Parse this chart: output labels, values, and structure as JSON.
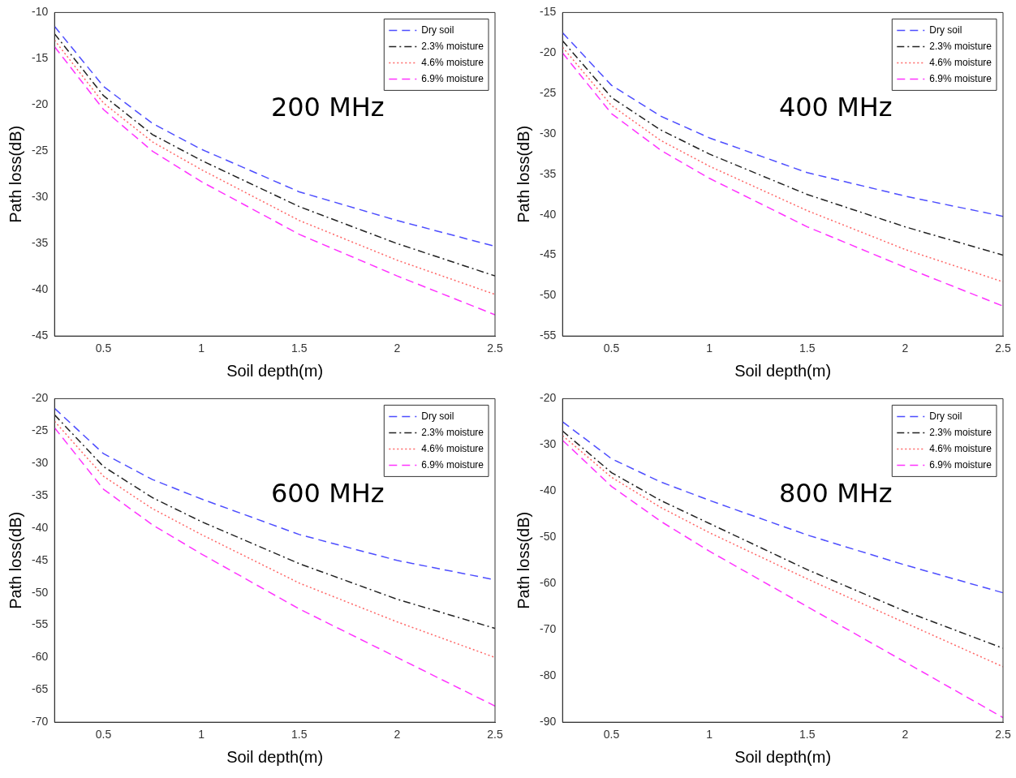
{
  "chart_data": [
    {
      "type": "line",
      "xlabel": "Soil depth(m)",
      "ylabel": "Path loss(dB)",
      "annotations": [
        "200 MHz"
      ],
      "x": [
        0.25,
        0.5,
        0.75,
        1,
        1.5,
        2,
        2.5
      ],
      "xlim": [
        0.25,
        2.5
      ],
      "xticks": [
        0.5,
        1,
        1.5,
        2,
        2.5
      ],
      "ylim": [
        -45,
        -10
      ],
      "yticks": [
        -45,
        -40,
        -35,
        -30,
        -25,
        -20,
        -15,
        -10
      ],
      "grid": false,
      "legend": "top right",
      "marker": "none",
      "series": [
        {
          "name": "Dry soil",
          "color": "#4d4dff",
          "line_style": "dashed",
          "values": [
            -11.5,
            -18,
            -22,
            -24.8,
            -29.4,
            -32.5,
            -35.3
          ]
        },
        {
          "name": "2.3% moisture",
          "color": "#222222",
          "line_style": "dashdot",
          "values": [
            -12.3,
            -19,
            -23.2,
            -26,
            -31,
            -35,
            -38.5
          ]
        },
        {
          "name": "4.6% moisture",
          "color": "#ff6666",
          "line_style": "dotted",
          "values": [
            -13,
            -19.8,
            -24,
            -27,
            -32.5,
            -36.8,
            -40.5
          ]
        },
        {
          "name": "6.9% moisture",
          "color": "#ff33ff",
          "line_style": "dashed",
          "values": [
            -13.7,
            -20.5,
            -25,
            -28.3,
            -34,
            -38.5,
            -42.7
          ]
        }
      ]
    },
    {
      "type": "line",
      "xlabel": "Soil depth(m)",
      "ylabel": "Path loss(dB)",
      "annotations": [
        "400 MHz"
      ],
      "x": [
        0.25,
        0.5,
        0.75,
        1,
        1.5,
        2,
        2.5
      ],
      "xlim": [
        0.25,
        2.5
      ],
      "xticks": [
        0.5,
        1,
        1.5,
        2,
        2.5
      ],
      "ylim": [
        -55,
        -15
      ],
      "yticks": [
        -55,
        -50,
        -45,
        -40,
        -35,
        -30,
        -25,
        -20,
        -15
      ],
      "grid": false,
      "legend": "top right",
      "marker": "none",
      "series": [
        {
          "name": "Dry soil",
          "color": "#4d4dff",
          "line_style": "dashed",
          "values": [
            -17.5,
            -24,
            -27.8,
            -30.5,
            -34.8,
            -37.7,
            -40.2
          ]
        },
        {
          "name": "2.3% moisture",
          "color": "#222222",
          "line_style": "dashdot",
          "values": [
            -18.5,
            -25.5,
            -29.5,
            -32.5,
            -37.5,
            -41.5,
            -45
          ]
        },
        {
          "name": "4.6% moisture",
          "color": "#ff6666",
          "line_style": "dotted",
          "values": [
            -19.3,
            -26.5,
            -30.8,
            -34,
            -39.5,
            -44.3,
            -48.3
          ]
        },
        {
          "name": "6.9% moisture",
          "color": "#ff33ff",
          "line_style": "dashed",
          "values": [
            -20,
            -27.5,
            -32,
            -35.5,
            -41.5,
            -46.5,
            -51.3
          ]
        }
      ]
    },
    {
      "type": "line",
      "xlabel": "Soil depth(m)",
      "ylabel": "Path loss(dB)",
      "annotations": [
        "600 MHz"
      ],
      "x": [
        0.25,
        0.5,
        0.75,
        1,
        1.5,
        2,
        2.5
      ],
      "xlim": [
        0.25,
        2.5
      ],
      "xticks": [
        0.5,
        1,
        1.5,
        2,
        2.5
      ],
      "ylim": [
        -70,
        -20
      ],
      "yticks": [
        -70,
        -65,
        -60,
        -55,
        -50,
        -45,
        -40,
        -35,
        -30,
        -25,
        -20
      ],
      "grid": false,
      "legend": "top right",
      "marker": "none",
      "series": [
        {
          "name": "Dry soil",
          "color": "#4d4dff",
          "line_style": "dashed",
          "values": [
            -21.5,
            -28.5,
            -32.5,
            -35.5,
            -41,
            -45,
            -48
          ]
        },
        {
          "name": "2.3% moisture",
          "color": "#222222",
          "line_style": "dashdot",
          "values": [
            -22.5,
            -30.5,
            -35.3,
            -39,
            -45.5,
            -51,
            -55.5
          ]
        },
        {
          "name": "4.6% moisture",
          "color": "#ff6666",
          "line_style": "dotted",
          "values": [
            -23.5,
            -32,
            -37,
            -41,
            -48.5,
            -54.5,
            -60
          ]
        },
        {
          "name": "6.9% moisture",
          "color": "#ff33ff",
          "line_style": "dashed",
          "values": [
            -24.5,
            -34,
            -39.5,
            -44,
            -52.5,
            -60,
            -67.5
          ]
        }
      ]
    },
    {
      "type": "line",
      "xlabel": "Soil depth(m)",
      "ylabel": "Path loss(dB)",
      "annotations": [
        "800 MHz"
      ],
      "x": [
        0.25,
        0.5,
        0.75,
        1,
        1.5,
        2,
        2.5
      ],
      "xlim": [
        0.25,
        2.5
      ],
      "xticks": [
        0.5,
        1,
        1.5,
        2,
        2.5
      ],
      "ylim": [
        -90,
        -20
      ],
      "yticks": [
        -90,
        -80,
        -70,
        -60,
        -50,
        -40,
        -30,
        -20
      ],
      "grid": false,
      "legend": "top right",
      "marker": "none",
      "series": [
        {
          "name": "Dry soil",
          "color": "#4d4dff",
          "line_style": "dashed",
          "values": [
            -25,
            -33,
            -38,
            -42,
            -49.5,
            -56,
            -62
          ]
        },
        {
          "name": "2.3% moisture",
          "color": "#222222",
          "line_style": "dashdot",
          "values": [
            -27,
            -36,
            -42,
            -47,
            -57,
            -66,
            -74
          ]
        },
        {
          "name": "4.6% moisture",
          "color": "#ff6666",
          "line_style": "dotted",
          "values": [
            -28,
            -37,
            -43.5,
            -49,
            -59,
            -68.5,
            -78
          ]
        },
        {
          "name": "6.9% moisture",
          "color": "#ff33ff",
          "line_style": "dashed",
          "values": [
            -29,
            -39,
            -46.5,
            -53,
            -65,
            -77,
            -89
          ]
        }
      ]
    }
  ]
}
